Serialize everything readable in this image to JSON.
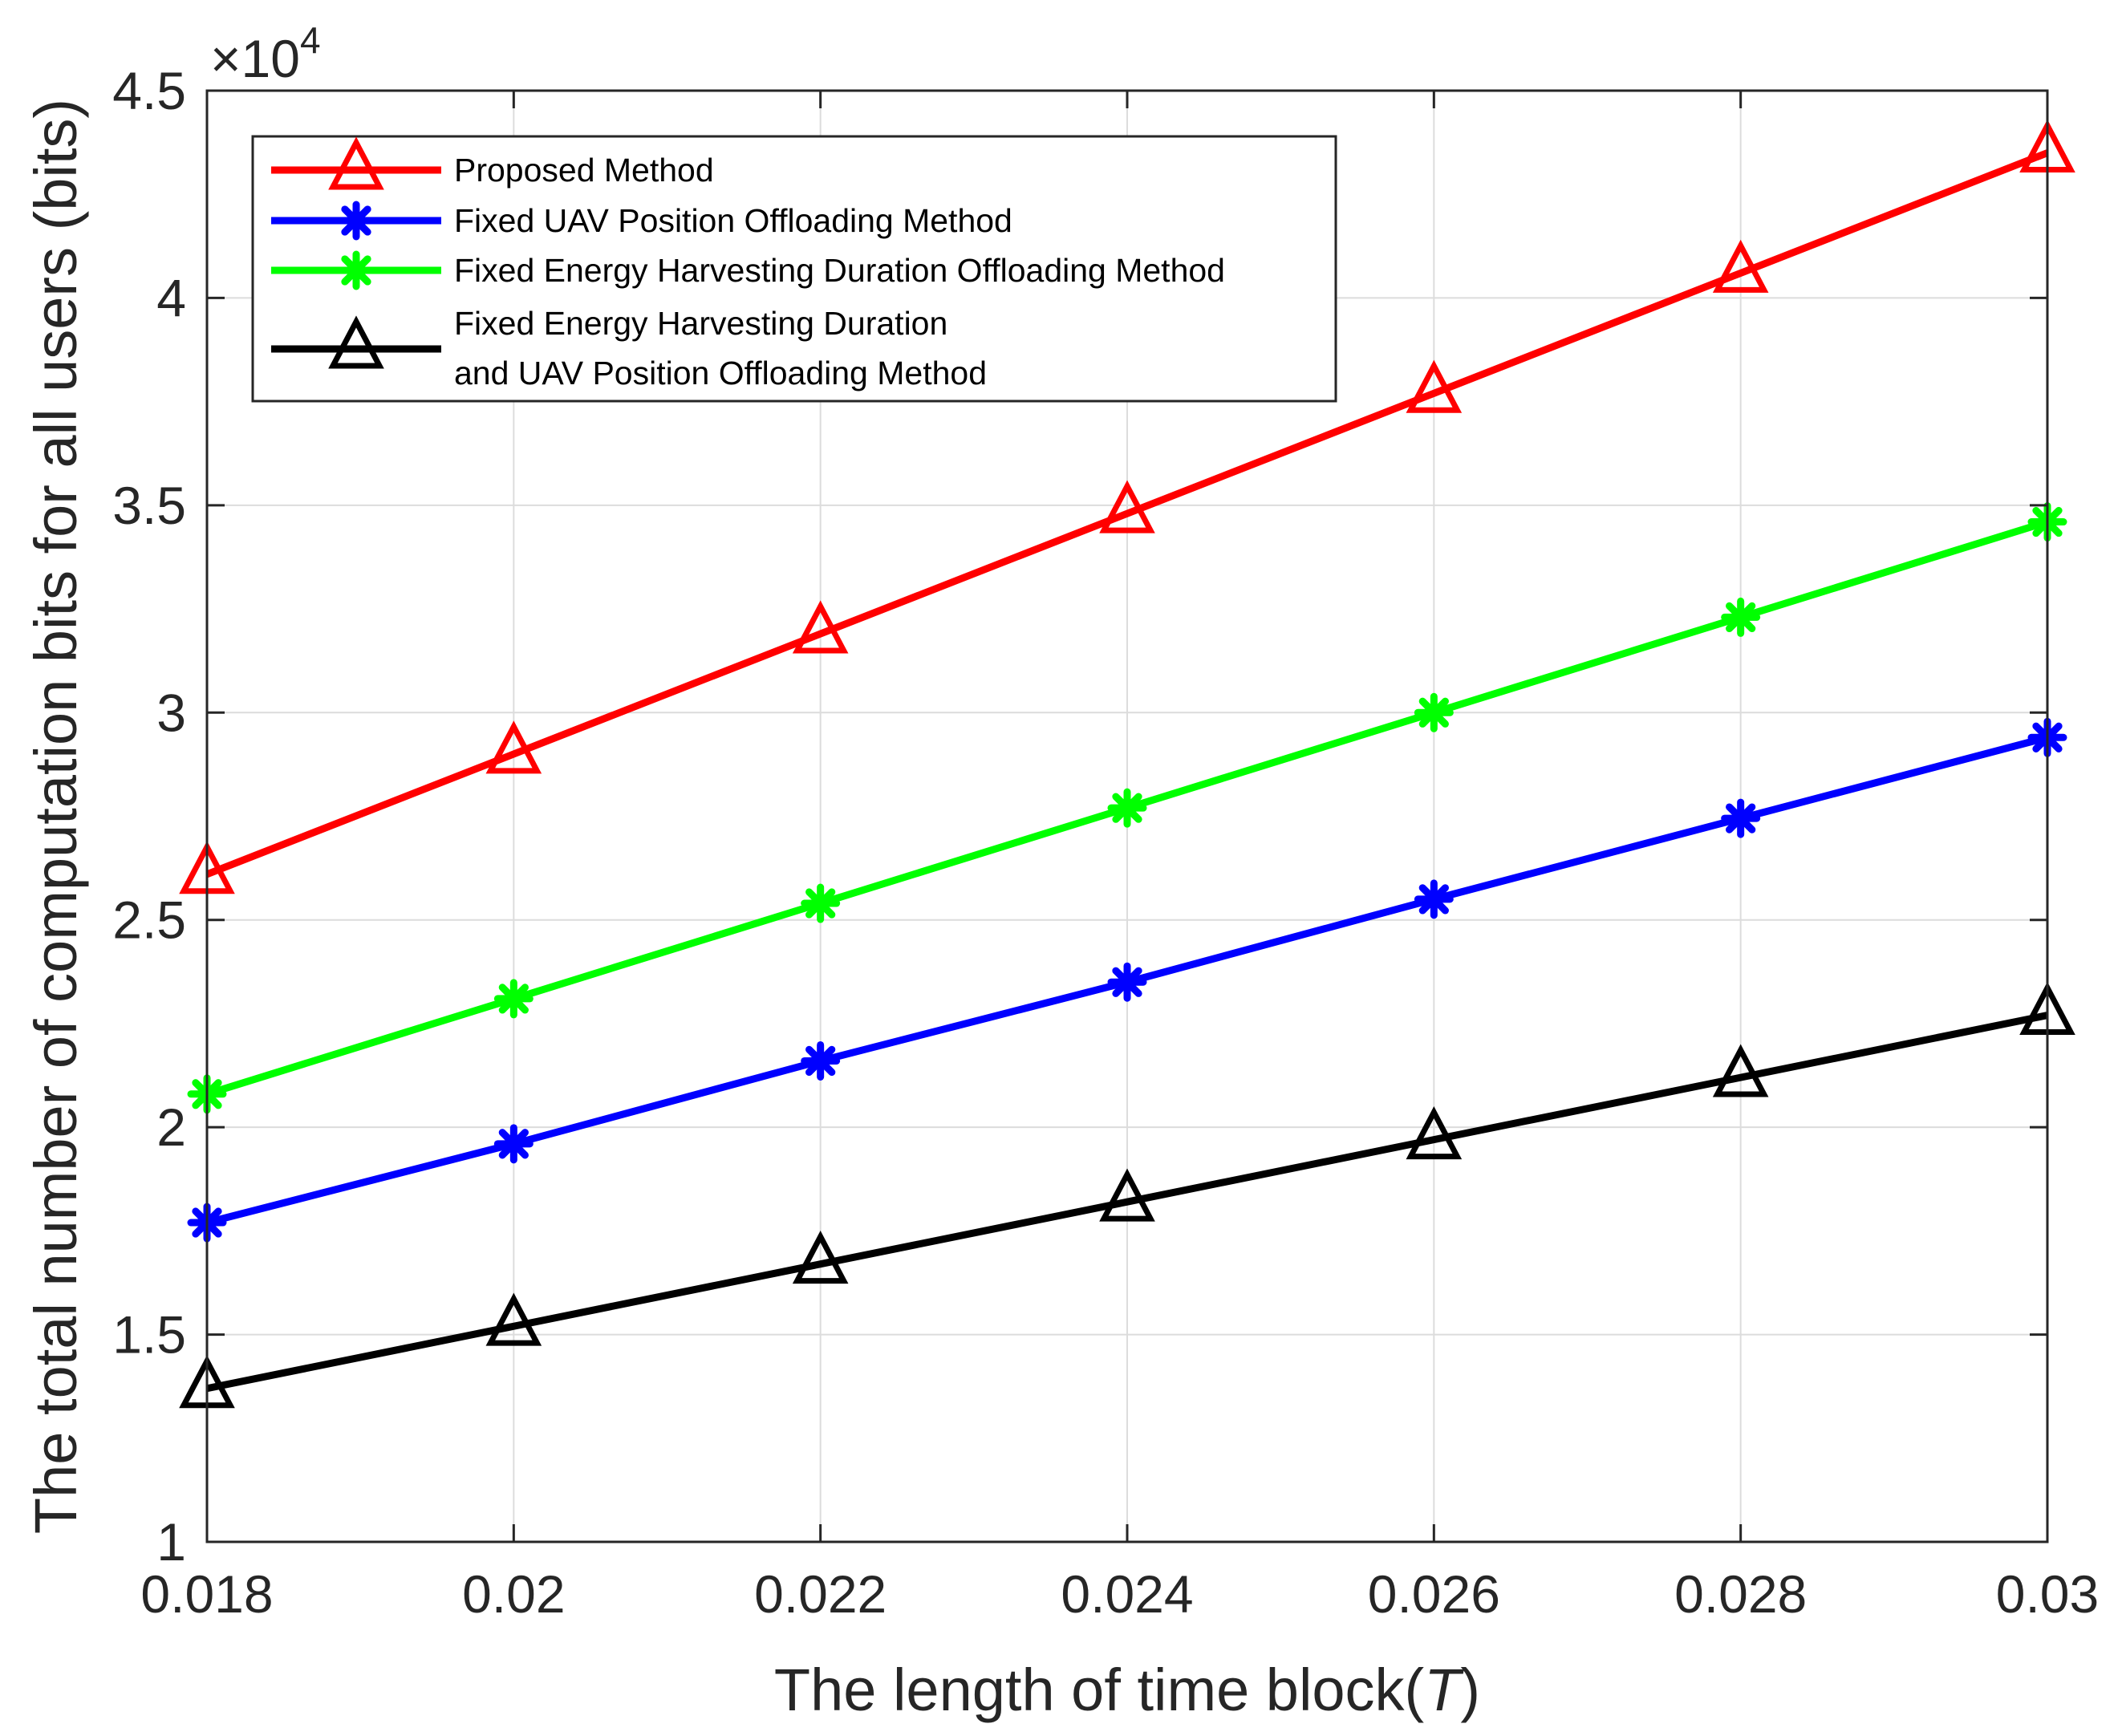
{
  "chart_data": {
    "type": "line",
    "xlabel": "The length of time block(",
    "xlabel_var": "T",
    "xlabel_end": ")",
    "ylabel": "The total number of computation bits for all users (bits)",
    "exponent_base": "×10",
    "exponent_power": "4",
    "x": [
      0.018,
      0.02,
      0.022,
      0.024,
      0.026,
      0.028,
      0.03
    ],
    "xticks": [
      "0.018",
      "0.02",
      "0.022",
      "0.024",
      "0.026",
      "0.028",
      "0.03"
    ],
    "yticks": [
      "1",
      "1.5",
      "2",
      "2.5",
      "3",
      "3.5",
      "4",
      "4.5"
    ],
    "ytick_values": [
      1,
      1.5,
      2,
      2.5,
      3,
      3.5,
      4,
      4.5
    ],
    "xlim": [
      0.018,
      0.03
    ],
    "ylim": [
      1,
      4.5
    ],
    "grid": true,
    "legend_position": "top-left",
    "series": [
      {
        "name": "Proposed Method",
        "color": "#ff0000",
        "marker": "triangle",
        "values": [
          2.61,
          2.9,
          3.19,
          3.48,
          3.77,
          4.06,
          4.35
        ]
      },
      {
        "name": "Fixed UAV Position Offloading Method",
        "color": "#0000ff",
        "marker": "asterisk",
        "values": [
          1.77,
          1.96,
          2.16,
          2.35,
          2.55,
          2.745,
          2.94
        ]
      },
      {
        "name": "Fixed Energy Harvesting Duration Offloading Method",
        "color": "#00ff00",
        "marker": "asterisk",
        "values": [
          2.08,
          2.31,
          2.54,
          2.77,
          3.0,
          3.23,
          3.46
        ]
      },
      {
        "name": "Fixed Energy Harvesting Duration and UAV Position Offloading Method",
        "legend_lines": [
          "Fixed Energy Harvesting Duration",
          "and UAV Position Offloading Method"
        ],
        "color": "#000000",
        "marker": "triangle",
        "values": [
          1.37,
          1.52,
          1.67,
          1.82,
          1.97,
          2.12,
          2.27
        ]
      }
    ]
  }
}
